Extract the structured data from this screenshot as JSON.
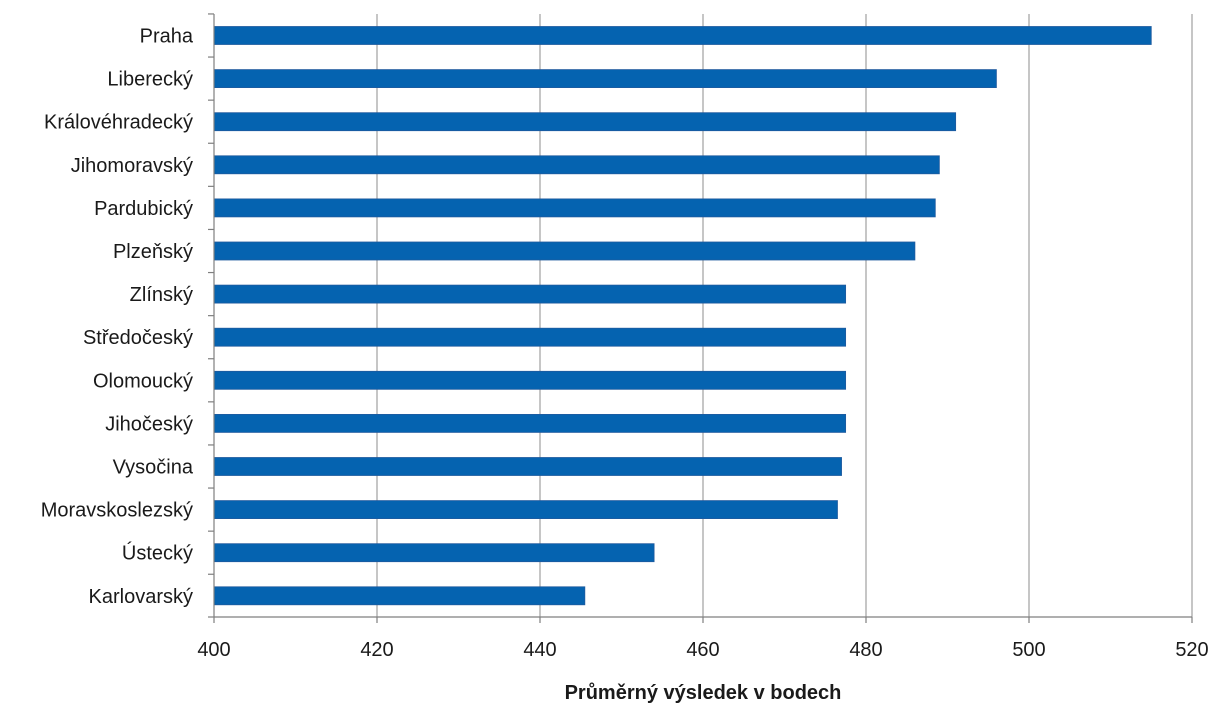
{
  "chart_data": {
    "type": "bar",
    "orientation": "horizontal",
    "categories": [
      "Praha",
      "Liberecký",
      "Královéhradecký",
      "Jihomoravský",
      "Pardubický",
      "Plzeňský",
      "Zlínský",
      "Středočeský",
      "Olomoucký",
      "Jihočeský",
      "Vysočina",
      "Moravskoslezský",
      "Ústecký",
      "Karlovarský"
    ],
    "values": [
      515,
      496,
      491,
      489,
      488.5,
      486,
      477.5,
      477.5,
      477.5,
      477.5,
      477,
      476.5,
      454,
      445.5
    ],
    "title": "",
    "xlabel": "Průměrný výsledek v bodech",
    "ylabel": "",
    "xlim": [
      400,
      520
    ],
    "xticks": [
      400,
      420,
      440,
      460,
      480,
      500,
      520
    ],
    "grid": "vertical",
    "legend": "none",
    "bar_color": "#0563b0"
  }
}
